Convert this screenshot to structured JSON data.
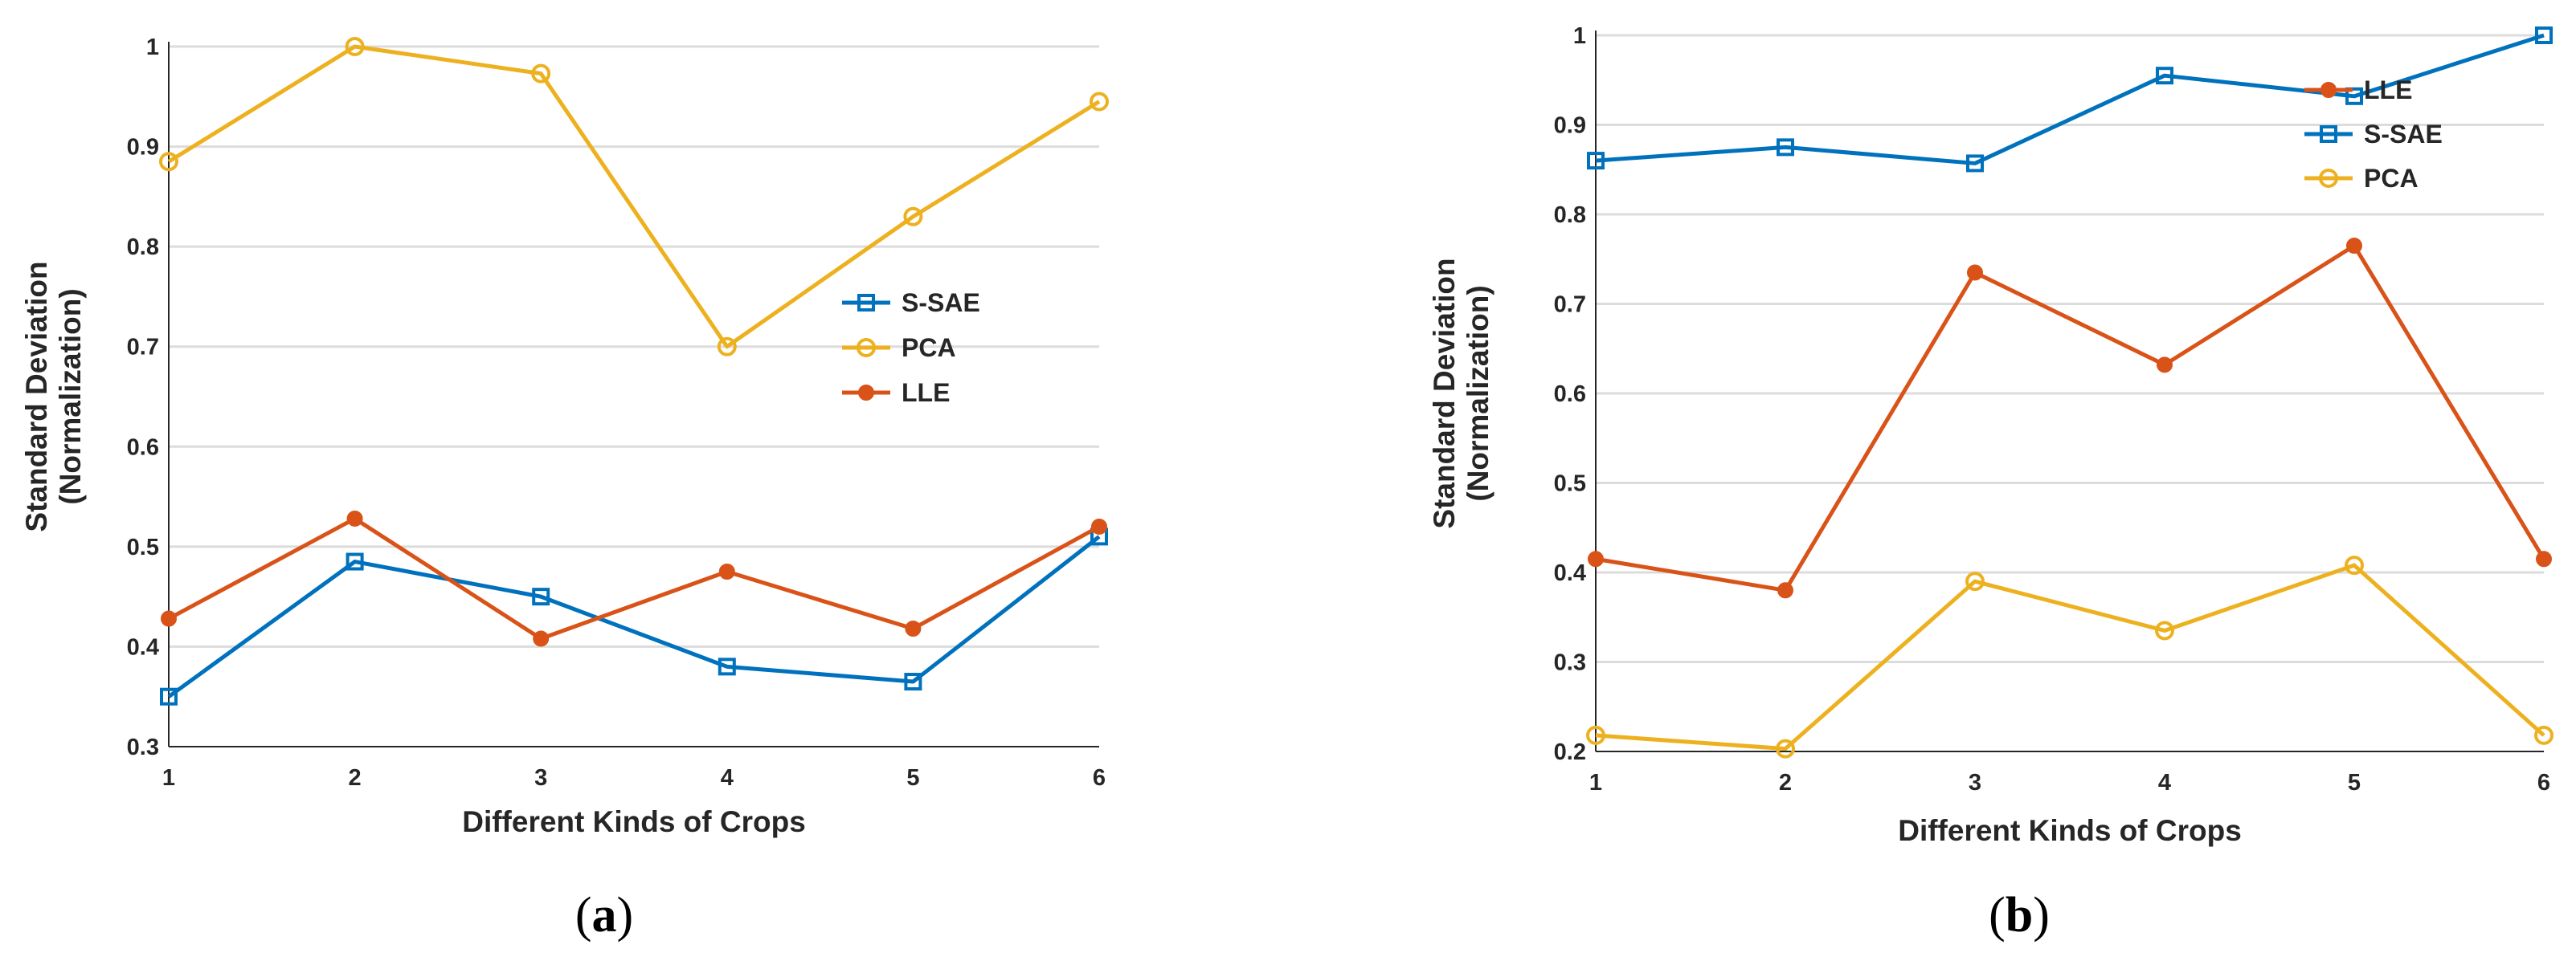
{
  "chart_data": [
    {
      "type": "line",
      "panel": "a",
      "caption_open": "(",
      "caption_letter": "a",
      "caption_close": ")",
      "xlabel": "Different Kinds of Crops",
      "ylabel_line1": "Standard Deviation",
      "ylabel_line2": "(Normalization)",
      "x": [
        1,
        2,
        3,
        4,
        5,
        6
      ],
      "xticks": [
        "1",
        "2",
        "3",
        "4",
        "5",
        "6"
      ],
      "xlim": [
        1,
        6
      ],
      "ylim": [
        0.3,
        1.0
      ],
      "yticks": [
        0.3,
        0.4,
        0.5,
        0.6,
        0.7,
        0.8,
        0.9,
        1.0
      ],
      "ytick_labels": [
        "0.3",
        "0.4",
        "0.5",
        "0.6",
        "0.7",
        "0.8",
        "0.9",
        "1"
      ],
      "grid": true,
      "legend_position": "center-right",
      "series": [
        {
          "name": "S-SAE",
          "color": "#0072BD",
          "marker": "square",
          "values": [
            0.35,
            0.485,
            0.45,
            0.38,
            0.365,
            0.51
          ]
        },
        {
          "name": "PCA",
          "color": "#EDB120",
          "marker": "circle",
          "values": [
            0.885,
            1.0,
            0.973,
            0.7,
            0.83,
            0.945
          ]
        },
        {
          "name": "LLE",
          "color": "#D95319",
          "marker": "dot",
          "values": [
            0.428,
            0.528,
            0.408,
            0.475,
            0.418,
            0.52
          ]
        }
      ]
    },
    {
      "type": "line",
      "panel": "b",
      "caption_open": "(",
      "caption_letter": "b",
      "caption_close": ")",
      "xlabel": "Different Kinds of Crops",
      "ylabel_line1": "Standard Deviation",
      "ylabel_line2": "(Normalization)",
      "x": [
        1,
        2,
        3,
        4,
        5,
        6
      ],
      "xticks": [
        "1",
        "2",
        "3",
        "4",
        "5",
        "6"
      ],
      "xlim": [
        1,
        6
      ],
      "ylim": [
        0.2,
        1.0
      ],
      "yticks": [
        0.2,
        0.3,
        0.4,
        0.5,
        0.6,
        0.7,
        0.8,
        0.9,
        1.0
      ],
      "ytick_labels": [
        "0.2",
        "0.3",
        "0.4",
        "0.5",
        "0.6",
        "0.7",
        "0.8",
        "0.9",
        "1"
      ],
      "grid": true,
      "legend_position": "top-right",
      "series": [
        {
          "name": "LLE",
          "color": "#D95319",
          "marker": "dot",
          "values": [
            0.415,
            0.38,
            0.735,
            0.632,
            0.765,
            0.415
          ]
        },
        {
          "name": "S-SAE",
          "color": "#0072BD",
          "marker": "square",
          "values": [
            0.86,
            0.875,
            0.857,
            0.955,
            0.932,
            1.0
          ]
        },
        {
          "name": "PCA",
          "color": "#EDB120",
          "marker": "circle",
          "values": [
            0.218,
            0.203,
            0.39,
            0.335,
            0.408,
            0.218
          ]
        }
      ]
    }
  ]
}
